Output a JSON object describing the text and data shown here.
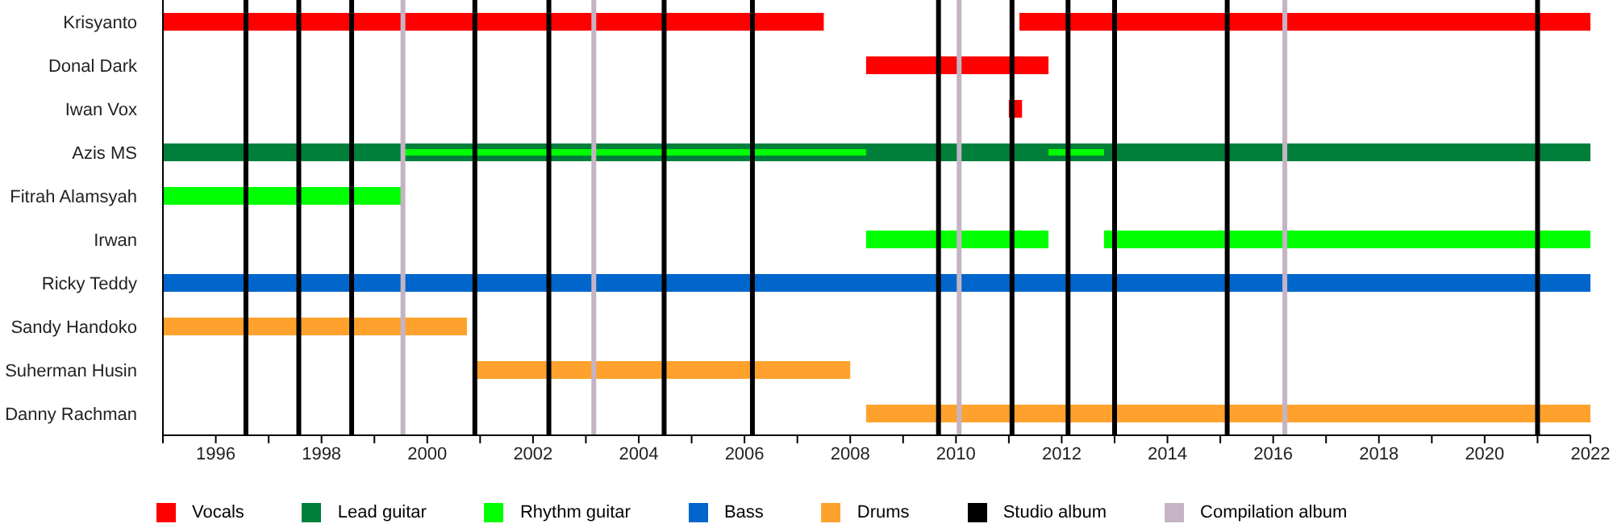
{
  "chart_data": {
    "type": "bar",
    "orientation": "horizontal",
    "categories": [
      "Krisyanto",
      "Donal Dark",
      "Iwan Vox",
      "Azis MS",
      "Fitrah Alamsyah",
      "Irwan",
      "Ricky Teddy",
      "Sandy Handoko",
      "Suherman Husin",
      "Danny Rachman"
    ],
    "series": [
      {
        "name": "Vocals",
        "color": "#ff0000",
        "base": [
          1995,
          2008.3,
          2011,
          null,
          null,
          null,
          null,
          null,
          null,
          null
        ],
        "values": [
          12.5,
          3.45,
          0.25,
          null,
          null,
          null,
          null,
          null,
          null,
          null
        ]
      },
      {
        "color": "#ff0000",
        "base": [
          2011.2,
          null,
          null,
          null,
          null,
          null,
          null,
          null,
          null,
          null
        ],
        "values": [
          10.8,
          null,
          null,
          null,
          null,
          null,
          null,
          null,
          null,
          null
        ]
      },
      {
        "name": "Lead guitar",
        "color": "#007f3a",
        "base": [
          null,
          null,
          null,
          1995,
          null,
          null,
          null,
          null,
          null,
          null
        ],
        "values": [
          null,
          null,
          null,
          27,
          null,
          null,
          null,
          null,
          null,
          null
        ]
      },
      {
        "name": "Rhythm guitar",
        "color": "#00ff00",
        "base": [
          null,
          null,
          null,
          1999.55,
          1995,
          2008.3,
          null,
          null,
          null,
          null
        ],
        "values": [
          null,
          null,
          null,
          8.75,
          4.55,
          3.45,
          null,
          null,
          null,
          null
        ]
      },
      {
        "color": "#00ff00",
        "base": [
          null,
          null,
          null,
          2011.75,
          null,
          2012.8,
          null,
          null,
          null,
          null
        ],
        "values": [
          null,
          null,
          null,
          1.05,
          null,
          9.2,
          null,
          null,
          null,
          null
        ]
      },
      {
        "name": "Bass",
        "color": "#0066cc",
        "base": [
          null,
          null,
          null,
          null,
          null,
          null,
          1995,
          null,
          null,
          null
        ],
        "values": [
          null,
          null,
          null,
          null,
          null,
          null,
          27,
          null,
          null,
          null
        ]
      },
      {
        "name": "Drums",
        "color": "#ffa22d",
        "base": [
          null,
          null,
          null,
          null,
          null,
          null,
          null,
          1995,
          2000.9,
          2008.3
        ],
        "values": [
          null,
          null,
          null,
          null,
          null,
          null,
          null,
          5.75,
          7.1,
          13.7
        ]
      }
    ],
    "xlim": [
      1995,
      2022
    ],
    "xticks": [
      {
        "value": 1995,
        "label": null
      },
      1996,
      {
        "value": 1997,
        "label": null
      },
      1998,
      {
        "value": 1999,
        "label": null
      },
      2000,
      {
        "value": 2001,
        "label": null
      },
      2002,
      {
        "value": 2003,
        "label": null
      },
      2004,
      {
        "value": 2005,
        "label": null
      },
      2006,
      {
        "value": 2007,
        "label": null
      },
      2008,
      {
        "value": 2009,
        "label": null
      },
      2010,
      {
        "value": 2011,
        "label": null
      },
      2012,
      {
        "value": 2013,
        "label": null
      },
      2014,
      {
        "value": 2015,
        "label": null
      },
      2016,
      {
        "value": 2017,
        "label": null
      },
      2018,
      {
        "value": 2019,
        "label": null
      },
      2020,
      {
        "value": 2021,
        "label": null
      },
      2022
    ],
    "ref_lines": [
      {
        "axis": "x",
        "value": 1996.57,
        "color": "#000000"
      },
      {
        "axis": "x",
        "value": 1997.57,
        "color": "#000000"
      },
      {
        "axis": "x",
        "value": 1998.57,
        "color": "#000000"
      },
      {
        "axis": "x",
        "value": 1999.54,
        "color": "#c4b4c4"
      },
      {
        "axis": "x",
        "value": 2000.9,
        "color": "#000000"
      },
      {
        "axis": "x",
        "value": 2002.3,
        "color": "#000000"
      },
      {
        "axis": "x",
        "value": 2003.15,
        "color": "#c4b4c4"
      },
      {
        "axis": "x",
        "value": 2004.48,
        "color": "#000000"
      },
      {
        "axis": "x",
        "value": 2006.15,
        "color": "#000000"
      },
      {
        "axis": "x",
        "value": 2009.67,
        "color": "#000000"
      },
      {
        "axis": "x",
        "value": 2010.06,
        "color": "#c4b4c4"
      },
      {
        "axis": "x",
        "value": 2011.06,
        "color": "#000000"
      },
      {
        "axis": "x",
        "value": 2012.12,
        "color": "#000000"
      },
      {
        "axis": "x",
        "value": 2013.0,
        "color": "#000000"
      },
      {
        "axis": "x",
        "value": 2015.13,
        "color": "#000000"
      },
      {
        "axis": "x",
        "value": 2016.22,
        "color": "#c4b4c4"
      },
      {
        "axis": "x",
        "value": 2021.0,
        "color": "#000000"
      }
    ],
    "annotations": [
      "Studio album",
      "Compilation album"
    ],
    "legend": "bottom"
  }
}
